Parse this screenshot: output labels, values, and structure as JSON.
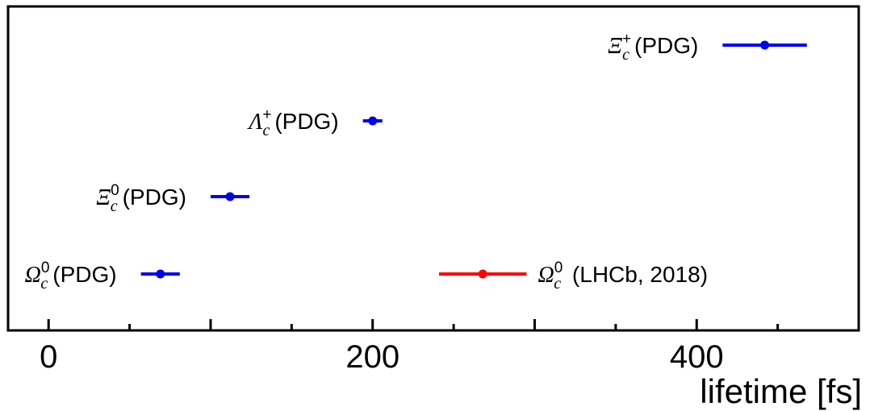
{
  "chart_data": {
    "type": "scatter",
    "title": "",
    "xlabel": "lifetime [fs]",
    "ylabel": "",
    "xlim": [
      -25,
      500
    ],
    "x_ticks": [
      0,
      200,
      400
    ],
    "x_tick_labels": [
      "0",
      "200",
      "400"
    ],
    "grid": false,
    "legend": "none",
    "colors": {
      "pdg": "#0000ee",
      "lhcb": "#ff0000"
    },
    "points": [
      {
        "symbol": "Ξ",
        "sup": "+",
        "sub": "c",
        "note": "(PDG)",
        "x": 442,
        "xerr": 26,
        "row": 0,
        "label_side": "left",
        "color": "#0000ee"
      },
      {
        "symbol": "Λ",
        "sup": "+",
        "sub": "c",
        "note": "(PDG)",
        "x": 200,
        "xerr": 6,
        "row": 1,
        "label_side": "left",
        "color": "#0000ee"
      },
      {
        "symbol": "Ξ",
        "sup": "0",
        "sub": "c",
        "note": "(PDG)",
        "x": 112,
        "xerr": 12,
        "row": 2,
        "label_side": "left",
        "color": "#0000ee"
      },
      {
        "symbol": "Ω",
        "sup": "0",
        "sub": "c",
        "note": "(PDG)",
        "x": 69,
        "xerr": 12,
        "row": 3,
        "label_side": "left",
        "color": "#0000ee"
      },
      {
        "symbol": "Ω",
        "sup": "0",
        "sub": "c",
        "note": " (LHCb, 2018)",
        "x": 268,
        "xerr": 27,
        "row": 3,
        "label_side": "right",
        "color": "#ff0000"
      }
    ]
  }
}
